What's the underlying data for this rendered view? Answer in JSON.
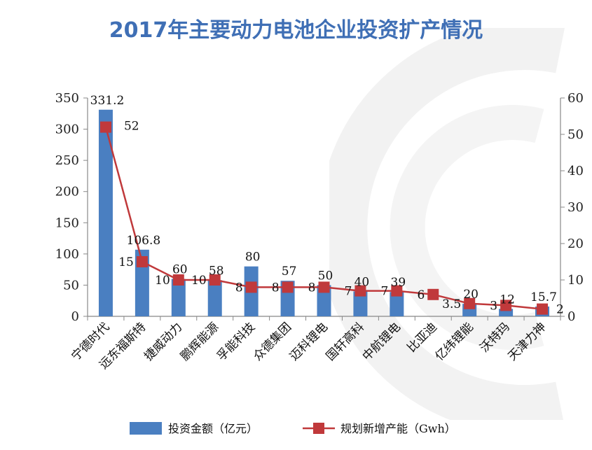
{
  "chart_data": {
    "type": "bar-line",
    "title": "2017年主要动力电池企业投资扩产情况",
    "categories": [
      "宁德时代",
      "远东福斯特",
      "捷威动力",
      "鹏辉能源",
      "孚能科技",
      "众德集团",
      "迈科锂电",
      "国轩高科",
      "中航锂电",
      "比亚迪",
      "亿纬锂能",
      "沃特玛",
      "天津力神"
    ],
    "series": [
      {
        "name": "投资金额（亿元）",
        "type": "bar",
        "axis": "left",
        "values": [
          331.2,
          106.8,
          60,
          58,
          80,
          57,
          50,
          40,
          39,
          null,
          20,
          12,
          15.7
        ],
        "labels": [
          "331.2",
          "106.8",
          "60",
          "58",
          "80",
          "57",
          "50",
          "40",
          "39",
          "",
          "20",
          "12",
          "15.7"
        ]
      },
      {
        "name": "规划新增产能（Gwh）",
        "type": "line",
        "axis": "right",
        "values": [
          52,
          15,
          10,
          10,
          8,
          8,
          8,
          7,
          7,
          6,
          3.5,
          3,
          2
        ],
        "labels": [
          "52",
          "15",
          "10",
          "10",
          "8",
          "8",
          "8",
          "7",
          "7",
          "6",
          "3.5",
          "3",
          "2"
        ]
      }
    ],
    "y_left": {
      "min": 0,
      "max": 350,
      "ticks": [
        "0",
        "50",
        "100",
        "150",
        "200",
        "250",
        "300",
        "350"
      ]
    },
    "y_right": {
      "min": 0,
      "max": 60,
      "ticks": [
        "0",
        "10",
        "20",
        "30",
        "40",
        "50",
        "60"
      ]
    },
    "legend_position": "bottom",
    "colors": {
      "bar": "#4a7fc1",
      "line": "#c0393b",
      "title": "#3f6fb5"
    }
  }
}
